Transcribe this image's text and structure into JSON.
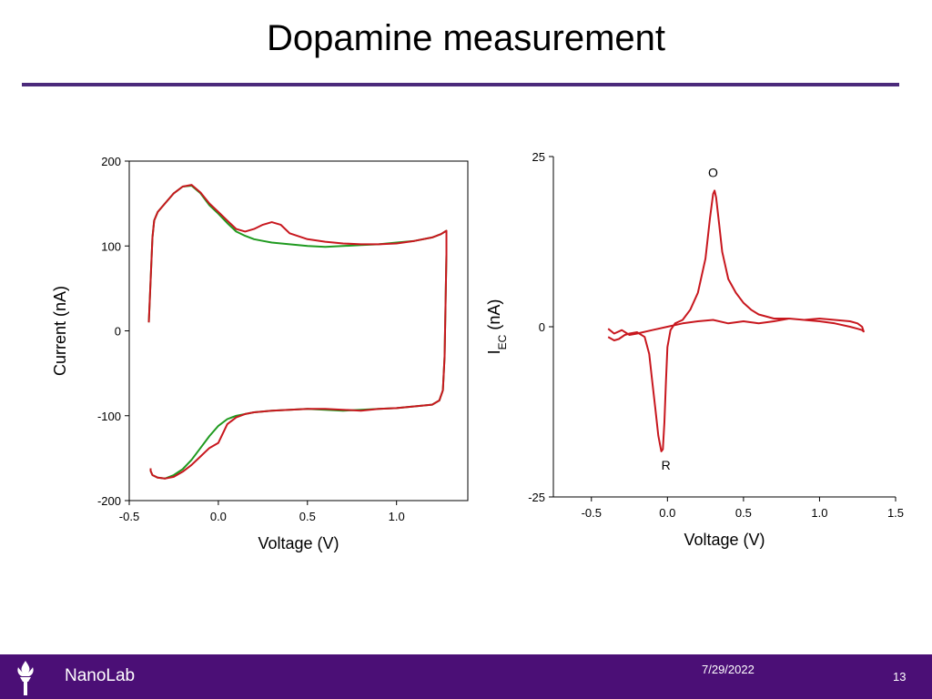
{
  "slide": {
    "title": "Dopamine measurement",
    "footer_brand": "NanoLab",
    "footer_date": "7/29/2022",
    "page_number": "13"
  },
  "colors": {
    "rule": "#4b2a7b",
    "footer": "#4b0f76",
    "red_series": "#c8171e",
    "green_series": "#1f9a1f"
  },
  "icons": {
    "footer_logo": "torch-icon"
  },
  "chart_data": [
    {
      "type": "line",
      "title": "",
      "xlabel": "Voltage (V)",
      "ylabel": "Current (nA)",
      "xlim": [
        -0.5,
        1.4
      ],
      "ylim": [
        -200,
        200
      ],
      "x_ticks": [
        -0.5,
        0.0,
        0.5,
        1.0
      ],
      "x_tick_labels": [
        "-0.5",
        "0.0",
        "0.5",
        "1.0"
      ],
      "y_ticks": [
        -200,
        -100,
        0,
        100,
        200
      ],
      "y_tick_labels": [
        "-200",
        "-100",
        "0",
        "100",
        "200"
      ],
      "grid": false,
      "series": [
        {
          "color": "#1f9a1f",
          "x": [
            -0.39,
            -0.38,
            -0.37,
            -0.36,
            -0.34,
            -0.3,
            -0.25,
            -0.2,
            -0.15,
            -0.1,
            -0.05,
            0.0,
            0.05,
            0.1,
            0.15,
            0.2,
            0.25,
            0.3,
            0.4,
            0.5,
            0.6,
            0.7,
            0.8,
            0.9,
            1.0,
            1.1,
            1.2,
            1.25,
            1.28,
            1.28,
            1.27,
            1.26,
            1.24,
            1.2,
            1.1,
            1.0,
            0.9,
            0.8,
            0.7,
            0.6,
            0.5,
            0.4,
            0.3,
            0.2,
            0.1,
            0.05,
            0.0,
            -0.05,
            -0.1,
            -0.15,
            -0.2,
            -0.25,
            -0.3,
            -0.34,
            -0.37,
            -0.38,
            -0.38
          ],
          "y": [
            10,
            60,
            110,
            130,
            140,
            150,
            162,
            170,
            171,
            162,
            148,
            138,
            127,
            117,
            112,
            108,
            106,
            104,
            102,
            100,
            99,
            100,
            101,
            102,
            104,
            106,
            110,
            114,
            118,
            90,
            -30,
            -70,
            -82,
            -87,
            -89,
            -91,
            -92,
            -93,
            -94,
            -93,
            -92,
            -93,
            -94,
            -96,
            -100,
            -104,
            -112,
            -124,
            -138,
            -152,
            -163,
            -170,
            -174,
            -173,
            -170,
            -165,
            -162
          ]
        },
        {
          "color": "#c8171e",
          "x": [
            -0.39,
            -0.38,
            -0.37,
            -0.36,
            -0.34,
            -0.3,
            -0.25,
            -0.2,
            -0.15,
            -0.1,
            -0.05,
            0.0,
            0.05,
            0.1,
            0.15,
            0.2,
            0.25,
            0.3,
            0.35,
            0.4,
            0.5,
            0.6,
            0.7,
            0.8,
            0.9,
            1.0,
            1.1,
            1.2,
            1.25,
            1.28,
            1.28,
            1.27,
            1.26,
            1.24,
            1.2,
            1.1,
            1.0,
            0.9,
            0.8,
            0.7,
            0.6,
            0.5,
            0.4,
            0.3,
            0.2,
            0.15,
            0.1,
            0.05,
            0.0,
            -0.05,
            -0.1,
            -0.15,
            -0.2,
            -0.25,
            -0.3,
            -0.34,
            -0.37,
            -0.38,
            -0.38
          ],
          "y": [
            10,
            60,
            110,
            130,
            140,
            150,
            162,
            170,
            172,
            163,
            150,
            140,
            130,
            120,
            117,
            120,
            125,
            128,
            125,
            115,
            108,
            105,
            103,
            102,
            102,
            103,
            106,
            110,
            114,
            118,
            90,
            -30,
            -70,
            -82,
            -87,
            -89,
            -91,
            -92,
            -94,
            -93,
            -92,
            -92,
            -93,
            -94,
            -96,
            -98,
            -102,
            -110,
            -132,
            -138,
            -148,
            -158,
            -166,
            -172,
            -174,
            -173,
            -170,
            -165,
            -162
          ]
        }
      ]
    },
    {
      "type": "line",
      "title": "",
      "xlabel": "Voltage (V)",
      "ylabel": "I",
      "ylabel_subscript": "EC",
      "ylabel_suffix": " (nA)",
      "xlim": [
        -0.75,
        1.5
      ],
      "ylim": [
        -25,
        25
      ],
      "x_ticks": [
        -0.5,
        0.0,
        0.5,
        1.0,
        1.5
      ],
      "x_tick_labels": [
        "-0.5",
        "0.0",
        "0.5",
        "1.0",
        "1.5"
      ],
      "y_ticks": [
        -25,
        0,
        25
      ],
      "y_tick_labels": [
        "-25",
        "0",
        "25"
      ],
      "grid": false,
      "annotations": [
        {
          "text": "O",
          "x": 0.3,
          "y": 22
        },
        {
          "text": "R",
          "x": -0.01,
          "y": -21
        }
      ],
      "series": [
        {
          "color": "#c8171e",
          "x": [
            -0.39,
            -0.35,
            -0.32,
            -0.28,
            -0.25,
            -0.2,
            -0.15,
            -0.12,
            -0.1,
            -0.08,
            -0.06,
            -0.04,
            -0.03,
            -0.02,
            -0.01,
            0.0,
            0.02,
            0.05,
            0.1,
            0.15,
            0.2,
            0.25,
            0.28,
            0.3,
            0.31,
            0.32,
            0.34,
            0.36,
            0.4,
            0.45,
            0.5,
            0.55,
            0.6,
            0.7,
            0.8,
            0.9,
            1.0,
            1.1,
            1.2,
            1.25,
            1.28,
            1.29,
            1.28,
            1.25,
            1.2,
            1.1,
            1.0,
            0.9,
            0.8,
            0.7,
            0.6,
            0.5,
            0.4,
            0.3,
            0.2,
            0.1,
            0.0,
            -0.1,
            -0.2,
            -0.25,
            -0.3,
            -0.35,
            -0.39
          ],
          "y": [
            -1.5,
            -2.0,
            -1.8,
            -1.2,
            -1.0,
            -0.8,
            -1.5,
            -4.0,
            -8.0,
            -12.0,
            -16.0,
            -18.3,
            -18.0,
            -14.0,
            -8.0,
            -3.0,
            -0.5,
            0.5,
            1.0,
            2.5,
            5.0,
            10.0,
            16.0,
            19.5,
            20.0,
            19.0,
            15.0,
            11.0,
            7.0,
            5.0,
            3.5,
            2.5,
            1.8,
            1.2,
            1.2,
            1.0,
            1.2,
            1.0,
            0.8,
            0.5,
            0.0,
            -0.7,
            -0.5,
            -0.3,
            0.0,
            0.5,
            0.8,
            1.0,
            1.2,
            0.8,
            0.5,
            0.8,
            0.5,
            1.0,
            0.8,
            0.5,
            0.0,
            -0.5,
            -1.0,
            -1.2,
            -0.5,
            -1.0,
            -0.3
          ]
        }
      ]
    }
  ]
}
